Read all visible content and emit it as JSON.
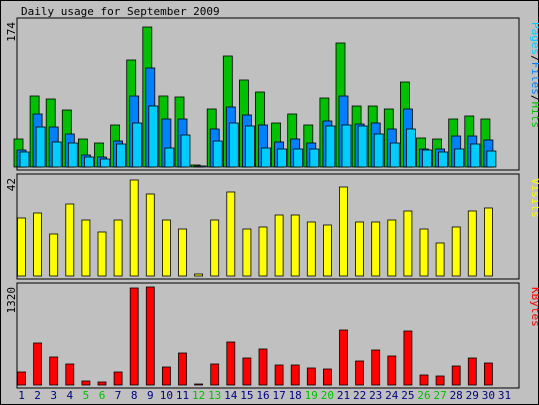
{
  "chart_data": {
    "type": "bar",
    "title": "Daily usage for September 2009",
    "days": [
      "1",
      "2",
      "3",
      "4",
      "5",
      "6",
      "7",
      "8",
      "9",
      "10",
      "11",
      "12",
      "13",
      "14",
      "15",
      "16",
      "17",
      "18",
      "19",
      "20",
      "21",
      "22",
      "23",
      "24",
      "25",
      "26",
      "27",
      "28",
      "29",
      "30",
      "31"
    ],
    "weekend_days": [
      "5",
      "6",
      "12",
      "13",
      "19",
      "20",
      "26",
      "27"
    ],
    "panels": [
      {
        "name": "pages-files-hits",
        "ymax_label": "174",
        "ymax": 174,
        "legend": [
          {
            "text": "Pages",
            "color": "#00ccff"
          },
          {
            "text": "/",
            "color": "#000000"
          },
          {
            "text": "Files",
            "color": "#0080ff"
          },
          {
            "text": "/",
            "color": "#000000"
          },
          {
            "text": "Hits",
            "color": "#00c000"
          }
        ],
        "series": [
          {
            "name": "Hits",
            "color": "#00c000",
            "values": [
              33,
              85,
              82,
              68,
              33,
              29,
              51,
              128,
              168,
              85,
              84,
              2,
              70,
              133,
              104,
              90,
              53,
              63,
              51,
              83,
              149,
              73,
              73,
              69,
              102,
              35,
              33,
              57,
              61,
              58
            ]
          },
          {
            "name": "Files",
            "color": "#0080ff",
            "values": [
              20,
              63,
              48,
              39,
              14,
              12,
              31,
              85,
              119,
              57,
              57,
              1,
              46,
              72,
              62,
              51,
              30,
              33,
              29,
              55,
              85,
              52,
              53,
              46,
              70,
              22,
              22,
              37,
              37,
              32
            ]
          },
          {
            "name": "Pages",
            "color": "#00ccff",
            "values": [
              18,
              48,
              30,
              29,
              12,
              10,
              28,
              53,
              73,
              23,
              38,
              1,
              31,
              53,
              49,
              23,
              21,
              21,
              21,
              49,
              51,
              49,
              40,
              29,
              45,
              20,
              18,
              21,
              28,
              19
            ]
          }
        ]
      },
      {
        "name": "visits",
        "ymax_label": "42",
        "ymax": 42,
        "legend": [
          {
            "text": "Visits",
            "color": "#ffff00"
          }
        ],
        "series": [
          {
            "name": "Visits",
            "color": "#ffff00",
            "values": [
              25,
              27,
              18,
              31,
              24,
              19,
              24,
              41,
              35,
              24,
              20,
              1,
              24,
              36,
              20,
              21,
              26,
              26,
              23,
              22,
              38,
              23,
              23,
              24,
              28,
              20,
              14,
              21,
              28,
              29
            ]
          }
        ]
      },
      {
        "name": "kbytes",
        "ymax_label": "1320",
        "ymax": 1320,
        "legend": [
          {
            "text": "KBytes",
            "color": "#ff0000"
          }
        ],
        "series": [
          {
            "name": "KBytes",
            "color": "#ff0000",
            "values": [
              170,
              570,
              377,
              280,
              58,
              40,
              180,
              1310,
              1320,
              240,
              437,
              5,
              280,
              580,
              370,
              480,
              270,
              270,
              230,
              220,
              740,
              320,
              467,
              390,
              730,
              130,
              124,
              250,
              370,
              300
            ]
          }
        ]
      }
    ]
  },
  "colors": {
    "background": "#c0c0c0",
    "plot_bg": "#c0c0c0",
    "weekend_label": "#00c000",
    "weekday_label": "#000080"
  }
}
